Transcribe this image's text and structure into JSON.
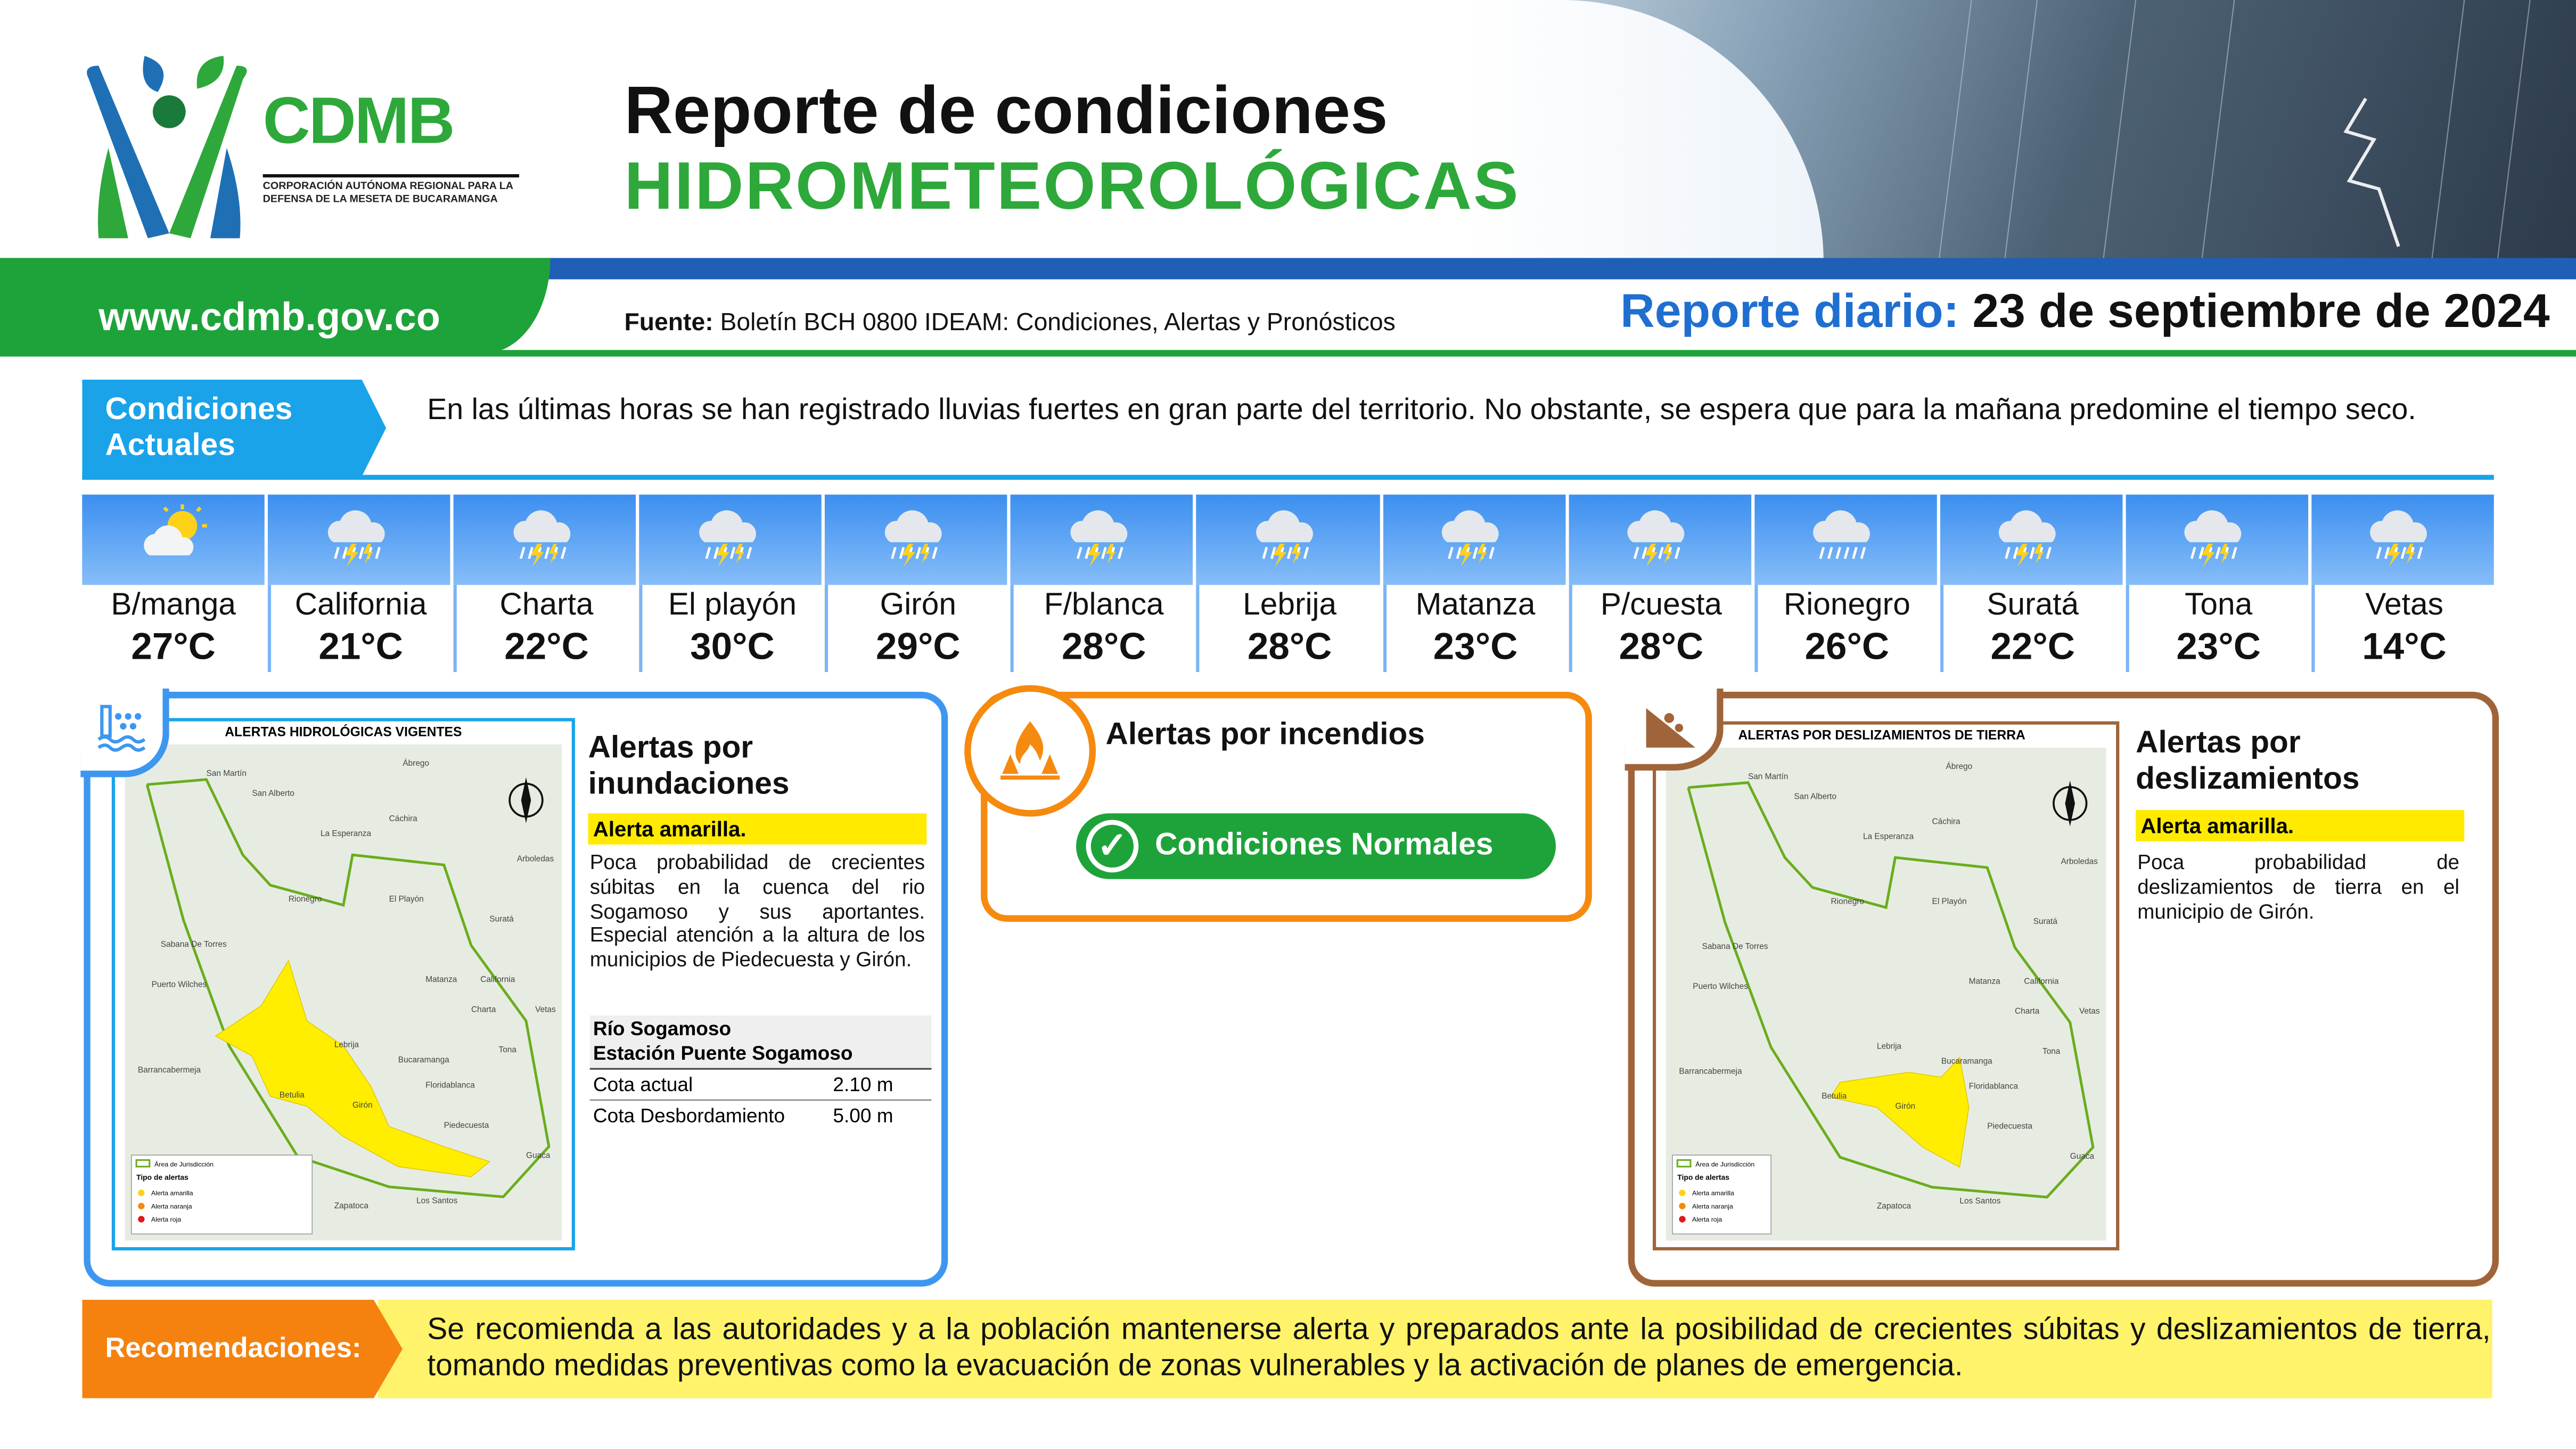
{
  "header": {
    "logo_text": "CDMB",
    "logo_subtitle": "CORPORACIÓN AUTÓNOMA REGIONAL PARA LA DEFENSA DE LA MESETA DE BUCARAMANGA",
    "title_line1": "Reporte de condiciones",
    "title_line2": "HIDROMETEOROLÓGICAS",
    "website": "www.cdmb.gov.co",
    "source_label": "Fuente:",
    "source_text": "Boletín BCH 0800 IDEAM: Condiciones, Alertas y Pronósticos",
    "report_label": "Reporte diario:",
    "report_date": "23 de septiembre de 2024"
  },
  "conditions": {
    "label": "Condiciones Actuales",
    "text": "En las últimas horas se han registrado lluvias fuertes en gran parte del territorio. No obstante, se espera que para la mañana predomine el tiempo seco."
  },
  "weather": [
    {
      "name": "B/manga",
      "temp": "27°C",
      "icon": "partly-sunny-icon"
    },
    {
      "name": "California",
      "temp": "21°C",
      "icon": "storm-rain-icon"
    },
    {
      "name": "Charta",
      "temp": "22°C",
      "icon": "storm-rain-icon"
    },
    {
      "name": "El playón",
      "temp": "30°C",
      "icon": "storm-rain-icon"
    },
    {
      "name": "Girón",
      "temp": "29°C",
      "icon": "storm-rain-icon"
    },
    {
      "name": "F/blanca",
      "temp": "28°C",
      "icon": "storm-rain-icon"
    },
    {
      "name": "Lebrija",
      "temp": "28°C",
      "icon": "storm-rain-icon"
    },
    {
      "name": "Matanza",
      "temp": "23°C",
      "icon": "storm-rain-icon"
    },
    {
      "name": "P/cuesta",
      "temp": "28°C",
      "icon": "storm-rain-icon"
    },
    {
      "name": "Rionegro",
      "temp": "26°C",
      "icon": "rain-icon"
    },
    {
      "name": "Suratá",
      "temp": "22°C",
      "icon": "storm-rain-icon"
    },
    {
      "name": "Tona",
      "temp": "23°C",
      "icon": "storm-rain-icon"
    },
    {
      "name": "Vetas",
      "temp": "14°C",
      "icon": "storm-rain-icon"
    }
  ],
  "flood": {
    "title": "Alertas por inundaciones",
    "alert": "Alerta amarilla.",
    "description": "Poca probabilidad de crecientes súbitas en la cuenca del rio Sogamoso y sus aportantes. Especial atención a la altura de los municipios de Piedecuesta y Girón.",
    "map_title": "ALERTAS HIDROLÓGICAS VIGENTES",
    "river": "Río Sogamoso",
    "station": "Estación Puente Sogamoso",
    "rows": [
      {
        "label": "Cota actual",
        "value": "2.10 m"
      },
      {
        "label": "Cota Desbordamiento",
        "value": "5.00 m"
      }
    ],
    "color": "#3d97f0"
  },
  "fire": {
    "title": "Alertas por incendios",
    "status": "Condiciones Normales",
    "color": "#f58a0f"
  },
  "landslide": {
    "title": "Alertas por deslizamientos",
    "alert": "Alerta amarilla.",
    "description": "Poca probabilidad de deslizamientos de tierra en el municipio de Girón.",
    "map_title": "ALERTAS POR DESLIZAMIENTOS DE TIERRA",
    "color": "#a0643a"
  },
  "map_places": [
    "San Martín",
    "San Alberto",
    "Ábrego",
    "Cáchira",
    "La Esperanza",
    "Arboledas",
    "Rionegro",
    "El Playón",
    "Suratá",
    "Sabana De Torres",
    "Puerto Wilches",
    "Matanza",
    "California",
    "Charta",
    "Vetas",
    "Barrancabermeja",
    "Lebrija",
    "Bucaramanga",
    "Tona",
    "Betulia",
    "Girón",
    "Floridablanca",
    "Piedecuesta",
    "Zapatoca",
    "Los Santos",
    "Guaca"
  ],
  "map_legend": {
    "jurisdiction": "Área de Jurisdicción",
    "types_title": "Tipo de alertas",
    "types": [
      "Alerta amarilla",
      "Alerta naranja",
      "Alerta roja"
    ]
  },
  "recommendations": {
    "label": "Recomendaciones:",
    "text": "Se recomienda a las autoridades y a la población mantenerse alerta y preparados ante la posibilidad de crecientes súbitas y deslizamientos de tierra, tomando medidas preventivas como la evacuación de zonas vulnerables y la activación de planes de emergencia."
  },
  "colors": {
    "green": "#1ea33a",
    "blue": "#1f5fb5",
    "cyan": "#1aa3e8",
    "orange": "#f5820f",
    "yellow": "#ffea00"
  }
}
